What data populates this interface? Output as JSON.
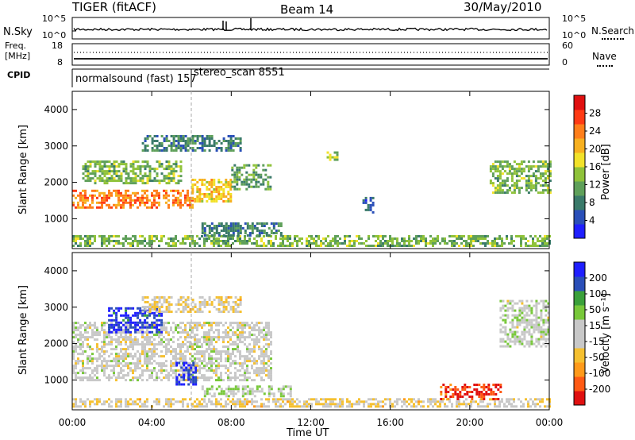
{
  "header": {
    "radar": "TIGER (fitACF)",
    "beam": "Beam 14",
    "date": "30/May/2010"
  },
  "strips": {
    "nsky_label": "N.Sky",
    "nsky_ticks": [
      "10^5",
      "10^0"
    ],
    "nsearch_label": "N.Search",
    "nsearch_ticks": [
      "10^5",
      "10^0"
    ],
    "freq_label_line1": "Freq.",
    "freq_label_line2": "[MHz]",
    "freq_ticks": [
      "18",
      "8"
    ],
    "nave_label": "Nave",
    "nave_ticks": [
      "60",
      "0"
    ],
    "cpid_label": "CPID",
    "cpid_programs": [
      "normalsound (fast) 157",
      "stereo_scan 8551"
    ]
  },
  "colors": {
    "power_scale": [
      "#1f1fff",
      "#2a4fb8",
      "#3a7a6a",
      "#5fa05a",
      "#8fc23a",
      "#f2e22a",
      "#f7b020",
      "#ff7e1a",
      "#ff3a14",
      "#e01010"
    ],
    "velocity_scale": [
      "#e01010",
      "#ff5a14",
      "#ff9a1a",
      "#f5c030",
      "#c8c8c8",
      "#c8c8c8",
      "#78c83a",
      "#3aa03a",
      "#2a4fb8",
      "#1f1fff"
    ]
  },
  "chart_data": [
    {
      "type": "heatmap",
      "name": "power-panel",
      "title": "",
      "xlabel": "Time UT",
      "ylabel": "Slant Range [km]",
      "x_ticks": [
        "00:00",
        "04:00",
        "08:00",
        "12:00",
        "16:00",
        "20:00",
        "00:00"
      ],
      "y_ticks": [
        "1000",
        "2000",
        "3000",
        "4000"
      ],
      "xlim": [
        0,
        24
      ],
      "ylim": [
        180,
        4500
      ],
      "colorbar_label": "Power [dB]",
      "colorbar_ticks": [
        "4",
        "8",
        "12",
        "16",
        "20",
        "24",
        "28"
      ],
      "colorbar_range": [
        0,
        30
      ],
      "features": [
        {
          "t0": 0.0,
          "t1": 6.0,
          "r0": 1300,
          "r1": 1800,
          "value": 22
        },
        {
          "t0": 6.0,
          "t1": 8.0,
          "r0": 1500,
          "r1": 2100,
          "value": 18
        },
        {
          "t0": 8.0,
          "t1": 10.0,
          "r0": 1800,
          "r1": 2500,
          "value": 10
        },
        {
          "t0": 0.5,
          "t1": 5.5,
          "r0": 2000,
          "r1": 2600,
          "value": 12
        },
        {
          "t0": 3.5,
          "t1": 8.5,
          "r0": 2900,
          "r1": 3300,
          "value": 8
        },
        {
          "t0": 0.0,
          "t1": 24.0,
          "r0": 250,
          "r1": 550,
          "value": 12
        },
        {
          "t0": 6.5,
          "t1": 10.5,
          "r0": 550,
          "r1": 900,
          "value": 8
        },
        {
          "t0": 14.6,
          "t1": 15.1,
          "r0": 1200,
          "r1": 1600,
          "value": 6
        },
        {
          "t0": 12.8,
          "t1": 13.3,
          "r0": 2600,
          "r1": 2850,
          "value": 14
        },
        {
          "t0": 21.0,
          "t1": 24.0,
          "r0": 1700,
          "r1": 2600,
          "value": 12
        }
      ]
    },
    {
      "type": "heatmap",
      "name": "velocity-panel",
      "title": "",
      "xlabel": "Time UT",
      "ylabel": "Slant Range [km]",
      "x_ticks": [
        "00:00",
        "04:00",
        "08:00",
        "12:00",
        "16:00",
        "20:00",
        "00:00"
      ],
      "y_ticks": [
        "1000",
        "2000",
        "3000",
        "4000"
      ],
      "xlim": [
        0,
        24
      ],
      "ylim": [
        180,
        4500
      ],
      "colorbar_label": "Velocity [m s⁻¹]",
      "colorbar_ticks": [
        "-200",
        "-100",
        "-50",
        "-15",
        "15",
        "50",
        "100",
        "200"
      ],
      "colorbar_range": [
        -250,
        250
      ],
      "features": [
        {
          "t0": 0.0,
          "t1": 10.0,
          "r0": 1000,
          "r1": 2600,
          "value": 0
        },
        {
          "t0": 5.2,
          "t1": 6.2,
          "r0": 900,
          "r1": 1500,
          "value": 220
        },
        {
          "t0": 1.8,
          "t1": 4.5,
          "r0": 2300,
          "r1": 3000,
          "value": 200
        },
        {
          "t0": 0.0,
          "t1": 24.0,
          "r0": 250,
          "r1": 500,
          "value": -40
        },
        {
          "t0": 6.5,
          "t1": 11.0,
          "r0": 550,
          "r1": 850,
          "value": 40
        },
        {
          "t0": 3.5,
          "t1": 8.5,
          "r0": 2900,
          "r1": 3300,
          "value": -40
        },
        {
          "t0": 18.5,
          "t1": 21.5,
          "r0": 500,
          "r1": 900,
          "value": -200
        },
        {
          "t0": 21.5,
          "t1": 24.0,
          "r0": 1900,
          "r1": 3200,
          "value": 10
        }
      ]
    }
  ]
}
